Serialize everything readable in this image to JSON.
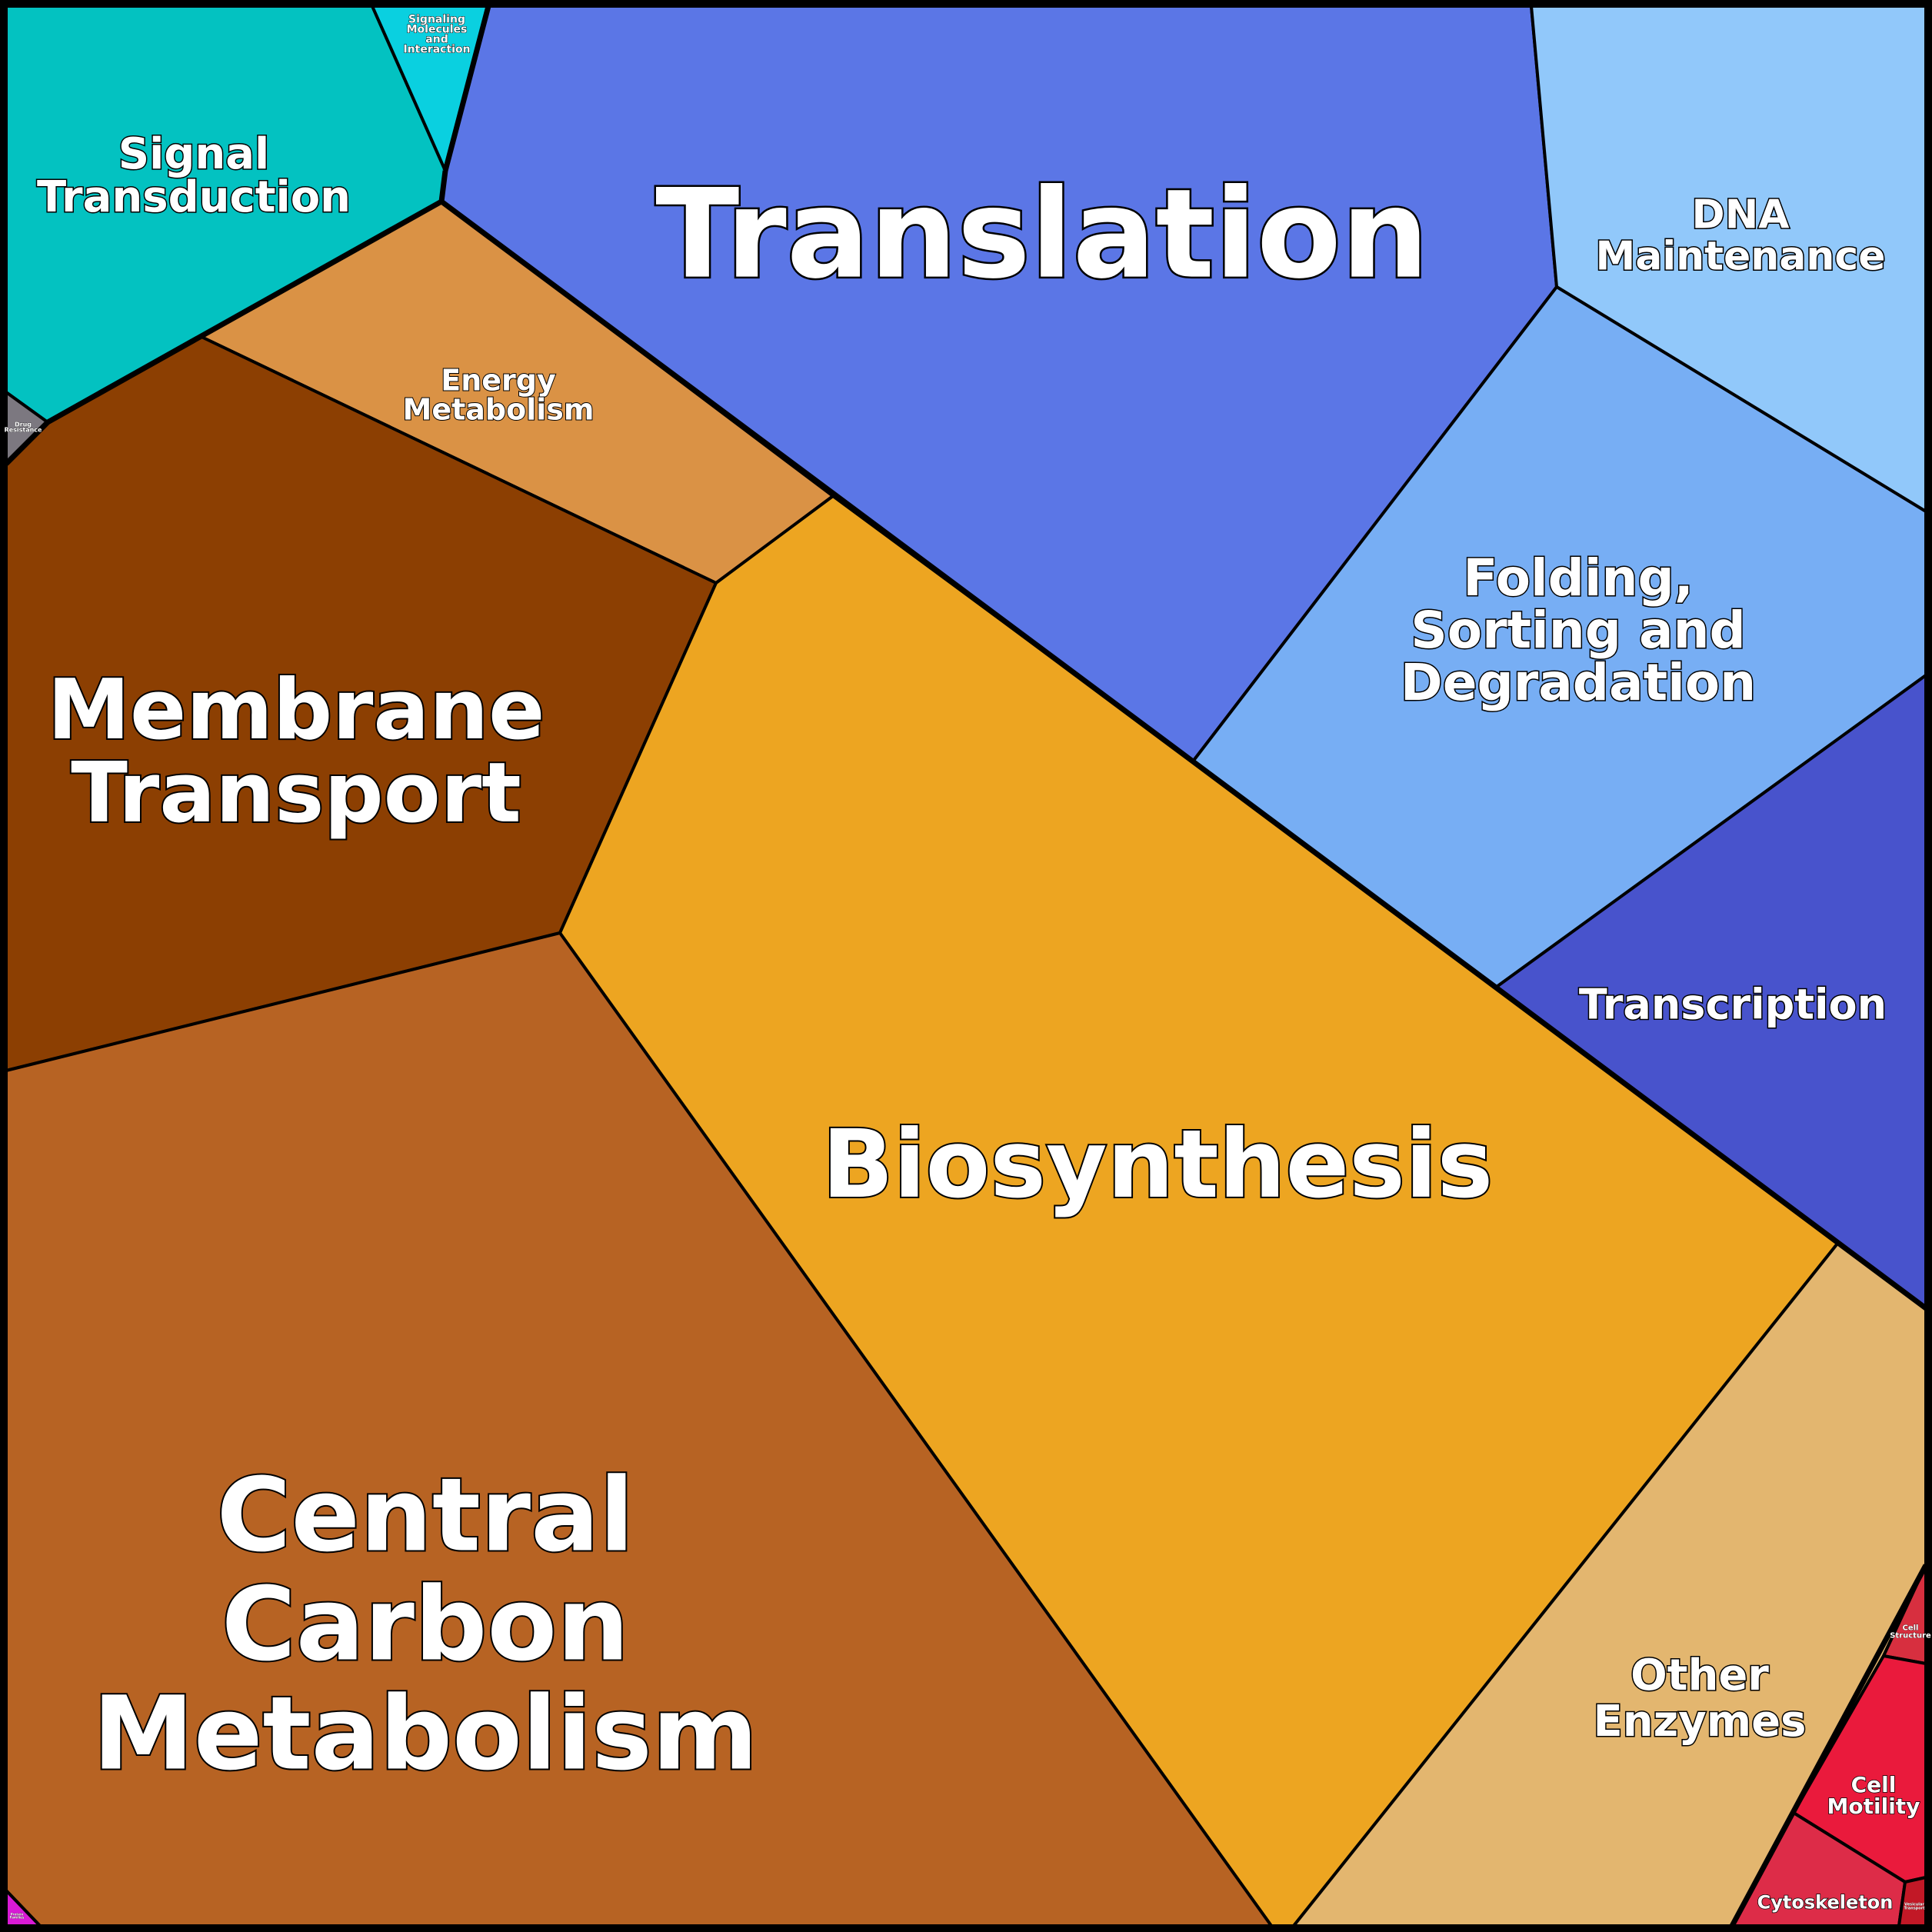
{
  "cells": [
    {
      "id": "signal-transduction",
      "lines": [
        "Signal",
        "Transduction"
      ],
      "color": "#03c2c1"
    },
    {
      "id": "signaling-molecules",
      "lines": [
        "Signaling",
        "Molecules",
        "and",
        "Interaction"
      ],
      "color": "#0ad0e0"
    },
    {
      "id": "translation",
      "lines": [
        "Translation"
      ],
      "color": "#5b76e6"
    },
    {
      "id": "dna-maintenance",
      "lines": [
        "DNA",
        "Maintenance"
      ],
      "color": "#91c8fa"
    },
    {
      "id": "folding-sorting-degradation",
      "lines": [
        "Folding,",
        "Sorting and",
        "Degradation"
      ],
      "color": "#77aef4"
    },
    {
      "id": "transcription",
      "lines": [
        "Transcription"
      ],
      "color": "#4853cc"
    },
    {
      "id": "energy-metabolism",
      "lines": [
        "Energy",
        "Metabolism"
      ],
      "color": "#da9245"
    },
    {
      "id": "drug-resistance",
      "lines": [
        "Drug",
        "Resistance"
      ],
      "color": "#7c7880"
    },
    {
      "id": "membrane-transport",
      "lines": [
        "Membrane",
        "Transport"
      ],
      "color": "#8c3f02"
    },
    {
      "id": "biosynthesis",
      "lines": [
        "Biosynthesis"
      ],
      "color": "#eda521"
    },
    {
      "id": "central-carbon-metabolism",
      "lines": [
        "Central",
        "Carbon",
        "Metabolism"
      ],
      "color": "#b76323"
    },
    {
      "id": "other-enzymes",
      "lines": [
        "Other",
        "Enzymes"
      ],
      "color": "#e3b66f"
    },
    {
      "id": "cell-structure",
      "lines": [
        "Cell",
        "Structure"
      ],
      "color": "#d72f3f"
    },
    {
      "id": "cell-motility",
      "lines": [
        "Cell",
        "Motility"
      ],
      "color": "#ea1a3c"
    },
    {
      "id": "cytoskeleton",
      "lines": [
        "Cytoskeleton"
      ],
      "color": "#dd2c48"
    },
    {
      "id": "vesicular-transport",
      "lines": [
        "Vesicular",
        "Transport"
      ],
      "color": "#c21826"
    },
    {
      "id": "magenta-corner-cell",
      "lines": [
        "Protein",
        "Families"
      ],
      "color": "#d91ad6"
    }
  ]
}
